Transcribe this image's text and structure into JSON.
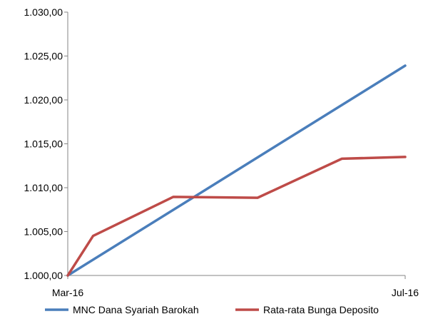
{
  "chart_data": {
    "type": "line",
    "title": "",
    "xlabel": "",
    "ylabel": "",
    "x_labels": [
      "Mar-16",
      "Jul-16"
    ],
    "ylim": [
      1000,
      1030
    ],
    "y_ticks": [
      1000,
      1005,
      1010,
      1015,
      1020,
      1025,
      1030
    ],
    "y_tick_labels": [
      "1.000,00",
      "1.005,00",
      "1.010,00",
      "1.015,00",
      "1.020,00",
      "1.025,00",
      "1.030,00"
    ],
    "grid": false,
    "legend_position": "bottom",
    "series": [
      {
        "name": "MNC Dana Syariah Barokah",
        "color": "#4A7EBB",
        "x": [
          0,
          4
        ],
        "values": [
          1000.0,
          1023.9
        ]
      },
      {
        "name": "Rata-rata Bunga Deposito",
        "color": "#BE4B48",
        "x": [
          0,
          0.3,
          1.25,
          2.25,
          3.25,
          4
        ],
        "values": [
          1000.0,
          1004.5,
          1008.95,
          1008.85,
          1013.3,
          1013.5
        ]
      }
    ],
    "x_domain": [
      0,
      4
    ]
  }
}
